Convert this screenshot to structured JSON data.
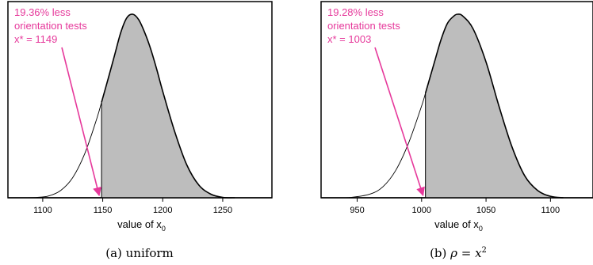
{
  "chart_data": [
    {
      "type": "area",
      "xlabel": "value of x",
      "xlabel_subscript": "0",
      "caption": "(a) uniform",
      "xlim": [
        1071,
        1291
      ],
      "xticks": [
        1100,
        1150,
        1200,
        1250
      ],
      "curve": {
        "x": [
          1080,
          1095,
          1105,
          1115,
          1125,
          1135,
          1145,
          1149,
          1155,
          1160,
          1165,
          1170,
          1175,
          1180,
          1185,
          1190,
          1195,
          1200,
          1210,
          1220,
          1230,
          1240,
          1250,
          1260
        ],
        "y": [
          0,
          0.002,
          0.01,
          0.04,
          0.11,
          0.24,
          0.43,
          0.52,
          0.66,
          0.78,
          0.9,
          0.98,
          1.0,
          0.97,
          0.9,
          0.81,
          0.7,
          0.58,
          0.36,
          0.18,
          0.07,
          0.02,
          0.002,
          0
        ]
      },
      "shaded_from_x": 1149,
      "annotation": {
        "lines": [
          "19.36% less",
          "orientation tests",
          "x* = 1149"
        ],
        "color": "#e6399b",
        "arrow_to_x": 1149
      }
    },
    {
      "type": "area",
      "xlabel": "value of x",
      "xlabel_subscript": "0",
      "caption_prefix": "(b)",
      "caption_math": "ρ = x",
      "caption_sup": "2",
      "xlim": [
        922,
        1133
      ],
      "xticks": [
        950,
        1000,
        1050,
        1100
      ],
      "curve": {
        "x": [
          930,
          945,
          960,
          970,
          980,
          990,
          1000,
          1003,
          1010,
          1015,
          1020,
          1025,
          1028,
          1032,
          1040,
          1050,
          1060,
          1070,
          1080,
          1090,
          1100,
          1110
        ],
        "y": [
          0,
          0.002,
          0.02,
          0.06,
          0.15,
          0.3,
          0.5,
          0.57,
          0.74,
          0.86,
          0.95,
          0.99,
          1.0,
          0.99,
          0.92,
          0.74,
          0.5,
          0.28,
          0.12,
          0.04,
          0.008,
          0
        ]
      },
      "shaded_from_x": 1003,
      "annotation": {
        "lines": [
          "19.28% less",
          "orientation tests",
          "x* = 1003"
        ],
        "color": "#e6399b",
        "arrow_to_x": 1003
      }
    }
  ]
}
